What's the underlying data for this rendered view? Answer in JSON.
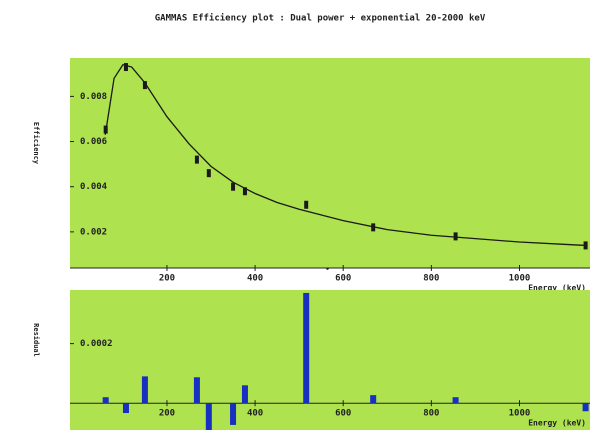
{
  "chart_data": [
    {
      "type": "line",
      "title": "GAMMAS Efficiency plot : Dual power + exponential   20-2000 keV",
      "y_label": "Efficiency",
      "x_label": "Energy (keV)",
      "background": "#aee24e",
      "xlim": [
        -20,
        1160
      ],
      "xticks": [
        200,
        400,
        600,
        800,
        1000
      ],
      "ylim": [
        0.0004,
        0.0097
      ],
      "yticks": [
        0.002,
        0.004,
        0.006,
        0.008
      ],
      "series": [
        {
          "mode": "line",
          "color": "#1a1a1a",
          "x": [
            60,
            80,
            100,
            120,
            150,
            200,
            250,
            300,
            350,
            400,
            450,
            500,
            600,
            700,
            800,
            900,
            1000,
            1100,
            1150
          ],
          "values": [
            0.0063,
            0.0088,
            0.0094,
            0.0093,
            0.0086,
            0.0071,
            0.0059,
            0.0049,
            0.0042,
            0.0037,
            0.0033,
            0.003,
            0.0025,
            0.0021,
            0.00185,
            0.0017,
            0.00155,
            0.00145,
            0.0014
          ]
        },
        {
          "mode": "markers",
          "color": "#1a1a1a",
          "x": [
            61,
            107,
            150,
            268,
            295,
            350,
            377,
            516,
            668,
            855,
            1150
          ],
          "values": [
            0.00653,
            0.0093,
            0.0085,
            0.0052,
            0.0046,
            0.004,
            0.0038,
            0.0032,
            0.0022,
            0.0018,
            0.0014
          ]
        }
      ]
    },
    {
      "type": "bar",
      "y_label": "Residual",
      "x_label": "Energy (keV)",
      "background": "#aee24e",
      "color": "#1830c0",
      "xlim": [
        -20,
        1160
      ],
      "xticks": [
        200,
        400,
        600,
        800,
        1000
      ],
      "ylim": [
        -9e-05,
        0.00038
      ],
      "yticks": [
        0.0002
      ],
      "x": [
        61,
        107,
        150,
        268,
        295,
        350,
        377,
        516,
        668,
        855,
        1150
      ],
      "values": [
        2e-05,
        -3.3e-05,
        9e-05,
        8.7e-05,
        -9e-05,
        -7.3e-05,
        6e-05,
        0.00037,
        2.7e-05,
        2e-05,
        -2.7e-05
      ]
    }
  ]
}
